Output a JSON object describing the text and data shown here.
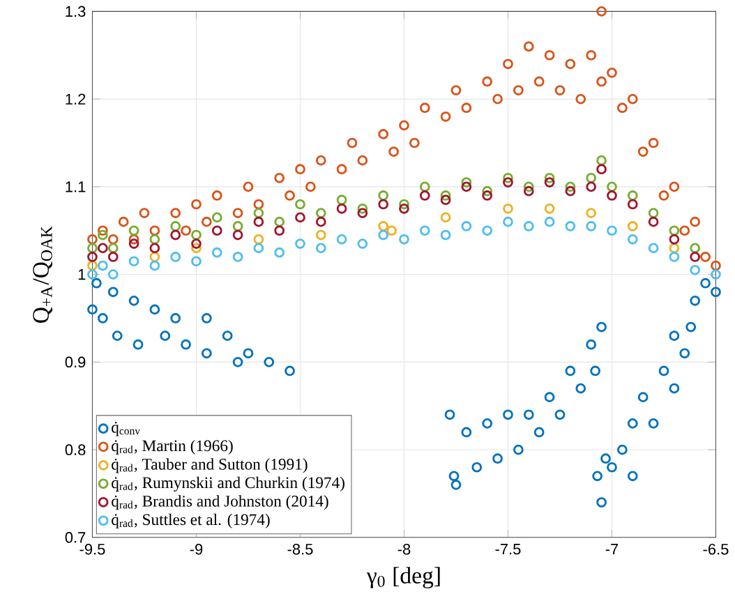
{
  "chart_data": {
    "type": "scatter",
    "xlabel": "γ$_{0}$ [deg]",
    "ylabel": "Q$_{+A}$/Q$_{OAK}$",
    "xlim": [
      -9.5,
      -6.5
    ],
    "ylim": [
      0.7,
      1.3
    ],
    "xticks": [
      -9.5,
      -9,
      -8.5,
      -8,
      -7.5,
      -7,
      -6.5
    ],
    "yticks": [
      0.7,
      0.8,
      0.9,
      1,
      1.1,
      1.2,
      1.3
    ],
    "grid": true,
    "legend": "bottom left",
    "marker": "circle",
    "series": [
      {
        "name": "q̇$_{conv}$",
        "color": "#0072bd",
        "x": [
          -9.5,
          -9.48,
          -9.45,
          -9.4,
          -9.38,
          -9.3,
          -9.28,
          -9.2,
          -9.15,
          -9.1,
          -9.05,
          -8.95,
          -8.95,
          -8.85,
          -8.8,
          -8.75,
          -8.65,
          -8.55,
          -7.78,
          -7.76,
          -7.75,
          -7.7,
          -7.65,
          -7.6,
          -7.55,
          -7.5,
          -7.45,
          -7.4,
          -7.35,
          -7.3,
          -7.25,
          -7.2,
          -7.15,
          -7.1,
          -7.08,
          -7.05,
          -7.07,
          -7.05,
          -7.03,
          -7.0,
          -6.95,
          -6.9,
          -6.9,
          -6.85,
          -6.8,
          -6.75,
          -6.7,
          -6.7,
          -6.65,
          -6.6,
          -6.62,
          -6.55,
          -6.5
        ],
        "values": [
          0.96,
          0.99,
          0.95,
          0.98,
          0.93,
          0.97,
          0.92,
          0.96,
          0.93,
          0.95,
          0.92,
          0.95,
          0.91,
          0.93,
          0.9,
          0.91,
          0.9,
          0.89,
          0.84,
          0.77,
          0.76,
          0.82,
          0.78,
          0.83,
          0.79,
          0.84,
          0.8,
          0.84,
          0.82,
          0.86,
          0.84,
          0.89,
          0.87,
          0.92,
          0.89,
          0.94,
          0.77,
          0.74,
          0.79,
          0.78,
          0.8,
          0.83,
          0.77,
          0.86,
          0.83,
          0.89,
          0.87,
          0.93,
          0.91,
          0.97,
          0.94,
          0.99,
          0.98
        ]
      },
      {
        "name": "q̇$_{rad}$, Martin (1966)",
        "color": "#d95319",
        "x": [
          -9.5,
          -9.45,
          -9.4,
          -9.35,
          -9.3,
          -9.25,
          -9.2,
          -9.1,
          -9.05,
          -9.0,
          -8.95,
          -8.9,
          -8.8,
          -8.75,
          -8.7,
          -8.6,
          -8.55,
          -8.5,
          -8.45,
          -8.4,
          -8.3,
          -8.25,
          -8.2,
          -8.1,
          -8.05,
          -8.0,
          -7.95,
          -7.9,
          -7.8,
          -7.75,
          -7.7,
          -7.6,
          -7.55,
          -7.5,
          -7.45,
          -7.4,
          -7.35,
          -7.3,
          -7.25,
          -7.2,
          -7.15,
          -7.1,
          -7.05,
          -7.05,
          -7.0,
          -6.95,
          -6.9,
          -6.85,
          -6.8,
          -6.75,
          -6.7,
          -6.65,
          -6.6,
          -6.55,
          -6.5
        ],
        "values": [
          1.04,
          1.05,
          1.04,
          1.06,
          1.04,
          1.07,
          1.05,
          1.07,
          1.05,
          1.08,
          1.06,
          1.09,
          1.07,
          1.1,
          1.08,
          1.11,
          1.09,
          1.12,
          1.1,
          1.13,
          1.12,
          1.15,
          1.13,
          1.16,
          1.14,
          1.17,
          1.15,
          1.19,
          1.18,
          1.21,
          1.19,
          1.22,
          1.2,
          1.24,
          1.21,
          1.26,
          1.22,
          1.25,
          1.21,
          1.24,
          1.2,
          1.25,
          1.3,
          1.22,
          1.23,
          1.19,
          1.2,
          1.14,
          1.15,
          1.09,
          1.1,
          1.05,
          1.06,
          1.02,
          1.01
        ]
      },
      {
        "name": "q̇$_{rad}$, Tauber and Sutton (1991)",
        "color": "#edb120",
        "x": [
          -9.5,
          -9.2,
          -9.0,
          -8.7,
          -8.4,
          -8.1,
          -8.06,
          -7.8,
          -7.5,
          -7.3,
          -7.1,
          -6.9,
          -6.7
        ],
        "values": [
          1.01,
          1.02,
          1.03,
          1.04,
          1.045,
          1.055,
          1.05,
          1.065,
          1.075,
          1.075,
          1.07,
          1.055,
          1.03
        ]
      },
      {
        "name": "q̇$_{rad}$, Rumynskii and Churkin (1974)",
        "color": "#77ac30",
        "x": [
          -9.5,
          -9.45,
          -9.4,
          -9.3,
          -9.2,
          -9.1,
          -9.0,
          -8.9,
          -8.8,
          -8.7,
          -8.6,
          -8.5,
          -8.4,
          -8.3,
          -8.2,
          -8.1,
          -8.0,
          -7.9,
          -7.8,
          -7.7,
          -7.6,
          -7.5,
          -7.4,
          -7.3,
          -7.2,
          -7.1,
          -7.05,
          -7.0,
          -6.9,
          -6.8,
          -6.7,
          -6.6
        ],
        "values": [
          1.03,
          1.045,
          1.03,
          1.05,
          1.04,
          1.055,
          1.045,
          1.065,
          1.055,
          1.07,
          1.06,
          1.08,
          1.07,
          1.085,
          1.075,
          1.09,
          1.08,
          1.1,
          1.09,
          1.105,
          1.095,
          1.11,
          1.1,
          1.11,
          1.1,
          1.11,
          1.13,
          1.1,
          1.09,
          1.07,
          1.05,
          1.03
        ]
      },
      {
        "name": "q̇$_{rad}$, Brandis and Johnston (2014)",
        "color": "#a2142f",
        "x": [
          -9.5,
          -9.45,
          -9.4,
          -9.3,
          -9.2,
          -9.1,
          -9.0,
          -8.9,
          -8.8,
          -8.7,
          -8.6,
          -8.5,
          -8.4,
          -8.3,
          -8.2,
          -8.1,
          -8.0,
          -7.9,
          -7.8,
          -7.7,
          -7.6,
          -7.5,
          -7.4,
          -7.3,
          -7.2,
          -7.1,
          -7.05,
          -7.0,
          -6.9,
          -6.8,
          -6.7,
          -6.6
        ],
        "values": [
          1.02,
          1.03,
          1.02,
          1.035,
          1.03,
          1.045,
          1.035,
          1.05,
          1.045,
          1.06,
          1.05,
          1.065,
          1.06,
          1.075,
          1.07,
          1.08,
          1.075,
          1.09,
          1.085,
          1.1,
          1.09,
          1.105,
          1.095,
          1.105,
          1.095,
          1.1,
          1.12,
          1.09,
          1.08,
          1.06,
          1.04,
          1.02
        ]
      },
      {
        "name": "q̇$_{rad}$, Suttles et al. (1974)",
        "color": "#4dbeee",
        "x": [
          -9.5,
          -9.45,
          -9.4,
          -9.3,
          -9.2,
          -9.1,
          -9.0,
          -8.9,
          -8.8,
          -8.7,
          -8.6,
          -8.5,
          -8.4,
          -8.3,
          -8.2,
          -8.1,
          -8.0,
          -7.9,
          -7.8,
          -7.7,
          -7.6,
          -7.5,
          -7.4,
          -7.3,
          -7.2,
          -7.1,
          -7.0,
          -6.9,
          -6.8,
          -6.7,
          -6.6,
          -6.5
        ],
        "values": [
          1.0,
          1.01,
          1.0,
          1.015,
          1.01,
          1.02,
          1.015,
          1.025,
          1.02,
          1.03,
          1.025,
          1.035,
          1.03,
          1.04,
          1.035,
          1.045,
          1.04,
          1.05,
          1.045,
          1.055,
          1.05,
          1.06,
          1.055,
          1.06,
          1.055,
          1.055,
          1.05,
          1.04,
          1.03,
          1.02,
          1.005,
          1.0
        ]
      }
    ]
  }
}
